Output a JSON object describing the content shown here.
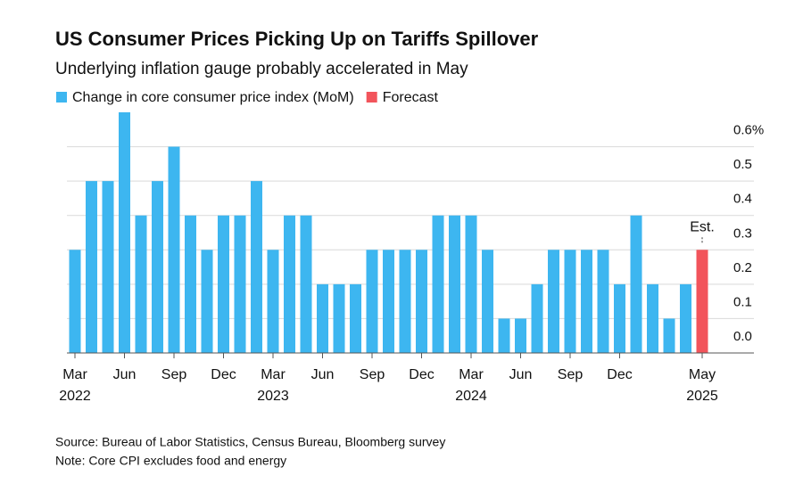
{
  "chart_data": {
    "type": "bar",
    "title": "US Consumer Prices Picking Up on Tariffs Spillover",
    "subtitle": "Underlying inflation gauge probably accelerated in May",
    "categories": [
      "Mar",
      null,
      null,
      "Jun",
      null,
      null,
      "Sep",
      null,
      null,
      "Dec",
      null,
      null,
      "Mar",
      null,
      null,
      "Jun",
      null,
      null,
      "Sep",
      null,
      null,
      "Dec",
      null,
      null,
      "Mar",
      null,
      null,
      "Jun",
      null,
      null,
      "Sep",
      null,
      null,
      "Dec",
      null,
      null,
      null,
      null,
      "May"
    ],
    "years": [
      "2022",
      null,
      null,
      null,
      null,
      null,
      null,
      null,
      null,
      null,
      null,
      null,
      "2023",
      null,
      null,
      null,
      null,
      null,
      null,
      null,
      null,
      null,
      null,
      null,
      "2024",
      null,
      null,
      null,
      null,
      null,
      null,
      null,
      null,
      null,
      null,
      null,
      null,
      null,
      "2025"
    ],
    "series": [
      {
        "name": "Change in core consumer price index (MoM)",
        "color": "#3db6f0",
        "values": [
          0.3,
          0.5,
          0.5,
          0.7,
          0.4,
          0.5,
          0.6,
          0.4,
          0.3,
          0.4,
          0.4,
          0.5,
          0.3,
          0.4,
          0.4,
          0.2,
          0.2,
          0.2,
          0.3,
          0.3,
          0.3,
          0.3,
          0.4,
          0.4,
          0.4,
          0.3,
          0.1,
          0.1,
          0.2,
          0.3,
          0.3,
          0.3,
          0.3,
          0.2,
          0.4,
          0.2,
          0.1,
          0.2,
          null
        ]
      },
      {
        "name": "Forecast",
        "color": "#f2545b",
        "values": [
          null,
          null,
          null,
          null,
          null,
          null,
          null,
          null,
          null,
          null,
          null,
          null,
          null,
          null,
          null,
          null,
          null,
          null,
          null,
          null,
          null,
          null,
          null,
          null,
          null,
          null,
          null,
          null,
          null,
          null,
          null,
          null,
          null,
          null,
          null,
          null,
          null,
          null,
          0.3
        ]
      }
    ],
    "annotation": "Est.",
    "ylim": [
      0,
      0.7
    ],
    "yticks": [
      {
        "value": 0,
        "label": "0.0"
      },
      0.1,
      0.2,
      0.3,
      0.4,
      0.5,
      {
        "value": 0.6,
        "label": "0.6%"
      }
    ],
    "grid": true,
    "source": "Source: Bureau of Labor Statistics, Census Bureau, Bloomberg survey",
    "note": "Note: Core CPI excludes food and energy"
  }
}
